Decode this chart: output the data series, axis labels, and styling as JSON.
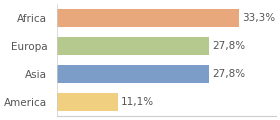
{
  "categories": [
    "Africa",
    "Europa",
    "Asia",
    "America"
  ],
  "values": [
    33.3,
    27.8,
    27.8,
    11.1
  ],
  "labels": [
    "33,3%",
    "27,8%",
    "27,8%",
    "11,1%"
  ],
  "bar_colors": [
    "#e8a87c",
    "#b5c98e",
    "#7b9dc7",
    "#f0d080"
  ],
  "background_color": "#ffffff",
  "xlim": [
    0,
    40
  ],
  "bar_height": 0.65,
  "label_fontsize": 7.5,
  "tick_fontsize": 7.5
}
